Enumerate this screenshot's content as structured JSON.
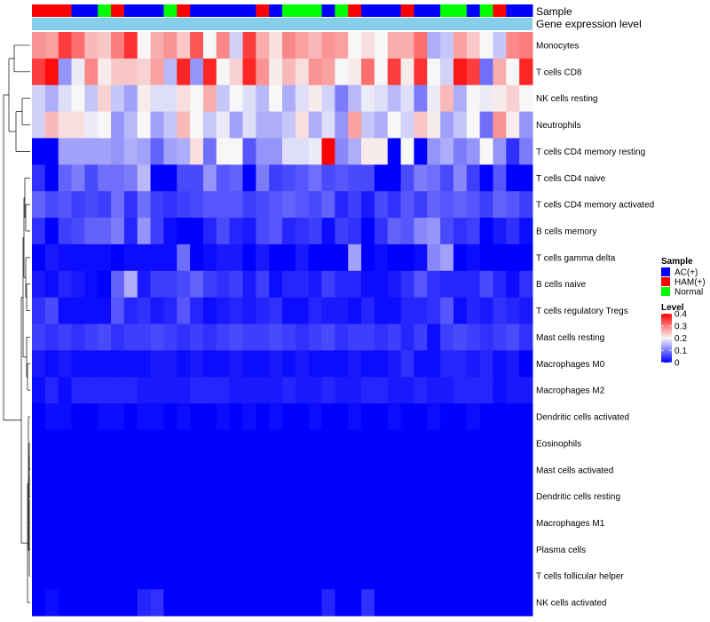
{
  "chart_data": {
    "type": "heatmap",
    "annotation_labels": {
      "sample": "Sample",
      "gene_expression": "Gene expression level"
    },
    "rows": [
      "Monocytes",
      "T cells CD8",
      "NK cells resting",
      "Neutrophils",
      "T cells CD4 memory resting",
      "T cells CD4 naive",
      "T cells CD4 memory activated",
      "B cells memory",
      "T cells gamma delta",
      "B cells naive",
      "T cells regulatory  Tregs",
      "Mast cells resting",
      "Macrophages M0",
      "Macrophages M2",
      "Dendritic cells activated",
      "Eosinophils",
      "Mast cells activated",
      "Dendritic cells resting",
      "Macrophages M1",
      "Plasma cells",
      "T cells follicular helper",
      "NK cells activated"
    ],
    "sample_groups": [
      "HAM(+)",
      "HAM(+)",
      "HAM(+)",
      "AC(+)",
      "AC(+)",
      "Normal",
      "HAM(+)",
      "AC(+)",
      "AC(+)",
      "AC(+)",
      "Normal",
      "HAM(+)",
      "AC(+)",
      "AC(+)",
      "AC(+)",
      "AC(+)",
      "AC(+)",
      "HAM(+)",
      "AC(+)",
      "Normal",
      "Normal",
      "Normal",
      "AC(+)",
      "Normal",
      "HAM(+)",
      "AC(+)",
      "AC(+)",
      "AC(+)",
      "HAM(+)",
      "AC(+)",
      "AC(+)",
      "Normal",
      "Normal",
      "AC(+)",
      "Normal",
      "HAM(+)",
      "AC(+)",
      "AC(+)"
    ],
    "values": [
      [
        0.28,
        0.27,
        0.35,
        0.31,
        0.25,
        0.24,
        0.3,
        0.36,
        0.2,
        0.26,
        0.28,
        0.24,
        0.33,
        0.2,
        0.29,
        0.17,
        0.35,
        0.26,
        0.22,
        0.29,
        0.27,
        0.25,
        0.28,
        0.27,
        0.2,
        0.22,
        0.2,
        0.26,
        0.26,
        0.31,
        0.14,
        0.16,
        0.27,
        0.24,
        0.2,
        0.16,
        0.29,
        0.3
      ],
      [
        0.35,
        0.39,
        0.12,
        0.19,
        0.29,
        0.21,
        0.24,
        0.24,
        0.23,
        0.27,
        0.15,
        0.37,
        0.12,
        0.37,
        0.2,
        0.23,
        0.37,
        0.28,
        0.21,
        0.25,
        0.22,
        0.28,
        0.27,
        0.2,
        0.21,
        0.31,
        0.2,
        0.35,
        0.21,
        0.36,
        0.2,
        0.17,
        0.38,
        0.35,
        0.09,
        0.26,
        0.2,
        0.37
      ],
      [
        0.17,
        0.14,
        0.18,
        0.2,
        0.16,
        0.23,
        0.16,
        0.13,
        0.21,
        0.18,
        0.18,
        0.22,
        0.2,
        0.26,
        0.16,
        0.2,
        0.18,
        0.15,
        0.2,
        0.14,
        0.18,
        0.21,
        0.17,
        0.1,
        0.15,
        0.19,
        0.18,
        0.15,
        0.18,
        0.1,
        0.19,
        0.25,
        0.14,
        0.2,
        0.19,
        0.21,
        0.23,
        0.2
      ],
      [
        0.17,
        0.25,
        0.22,
        0.22,
        0.19,
        0.2,
        0.12,
        0.15,
        0.2,
        0.13,
        0.16,
        0.25,
        0.2,
        0.16,
        0.19,
        0.13,
        0.18,
        0.14,
        0.14,
        0.16,
        0.22,
        0.14,
        0.18,
        0.12,
        0.27,
        0.16,
        0.14,
        0.2,
        0.17,
        0.24,
        0.21,
        0.13,
        0.16,
        0.2,
        0.09,
        0.28,
        0.21,
        0.12
      ],
      [
        0.0,
        0.0,
        0.13,
        0.13,
        0.13,
        0.13,
        0.12,
        0.14,
        0.13,
        0.08,
        0.13,
        0.14,
        0.22,
        0.09,
        0.2,
        0.2,
        0.07,
        0.12,
        0.12,
        0.18,
        0.18,
        0.19,
        0.4,
        0.11,
        0.14,
        0.21,
        0.21,
        0.0,
        0.2,
        0.0,
        0.12,
        0.14,
        0.1,
        0.12,
        0.2,
        0.12,
        0.04,
        0.1
      ],
      [
        0.04,
        0.0,
        0.08,
        0.1,
        0.06,
        0.09,
        0.09,
        0.1,
        0.15,
        0.0,
        0.0,
        0.06,
        0.06,
        0.12,
        0.07,
        0.08,
        0.0,
        0.1,
        0.05,
        0.06,
        0.07,
        0.09,
        0.06,
        0.07,
        0.06,
        0.06,
        0.0,
        0.0,
        0.06,
        0.1,
        0.09,
        0.06,
        0.11,
        0.05,
        0.0,
        0.07,
        0.0,
        0.0
      ],
      [
        0.08,
        0.06,
        0.07,
        0.05,
        0.06,
        0.05,
        0.09,
        0.04,
        0.09,
        0.05,
        0.04,
        0.05,
        0.06,
        0.07,
        0.07,
        0.07,
        0.05,
        0.06,
        0.07,
        0.08,
        0.07,
        0.06,
        0.08,
        0.03,
        0.05,
        0.02,
        0.06,
        0.04,
        0.07,
        0.05,
        0.08,
        0.07,
        0.08,
        0.07,
        0.05,
        0.08,
        0.07,
        0.05
      ],
      [
        0.04,
        0.0,
        0.05,
        0.06,
        0.08,
        0.08,
        0.1,
        0.03,
        0.12,
        0.05,
        0.01,
        0.0,
        0.0,
        0.03,
        0.06,
        0.03,
        0.02,
        0.06,
        0.07,
        0.03,
        0.04,
        0.05,
        0.01,
        0.05,
        0.04,
        0.0,
        0.04,
        0.08,
        0.07,
        0.11,
        0.12,
        0.06,
        0.04,
        0.05,
        0.0,
        0.02,
        0.04,
        0.01
      ],
      [
        0.0,
        0.02,
        0.01,
        0.01,
        0.01,
        0.01,
        0.0,
        0.01,
        0.01,
        0.01,
        0.01,
        0.09,
        0.0,
        0.01,
        0.02,
        0.02,
        0.0,
        0.02,
        0.0,
        0.0,
        0.02,
        0.0,
        0.0,
        0.0,
        0.13,
        0.0,
        0.01,
        0.0,
        0.0,
        0.01,
        0.11,
        0.13,
        0.0,
        0.01,
        0.0,
        0.0,
        0.0,
        0.0
      ],
      [
        0.02,
        0.01,
        0.03,
        0.02,
        0.01,
        0.0,
        0.08,
        0.14,
        0.02,
        0.05,
        0.05,
        0.06,
        0.08,
        0.05,
        0.04,
        0.05,
        0.02,
        0.05,
        0.01,
        0.03,
        0.03,
        0.02,
        0.05,
        0.03,
        0.03,
        0.01,
        0.01,
        0.02,
        0.04,
        0.07,
        0.04,
        0.03,
        0.03,
        0.03,
        0.06,
        0.03,
        0.01,
        0.04
      ],
      [
        0.04,
        0.06,
        0.01,
        0.01,
        0.01,
        0.01,
        0.07,
        0.03,
        0.04,
        0.02,
        0.03,
        0.07,
        0.03,
        0.01,
        0.02,
        0.03,
        0.02,
        0.03,
        0.04,
        0.01,
        0.01,
        0.03,
        0.02,
        0.02,
        0.01,
        0.03,
        0.01,
        0.01,
        0.03,
        0.03,
        0.04,
        0.07,
        0.01,
        0.03,
        0.02,
        0.04,
        0.03,
        0.02
      ],
      [
        0.05,
        0.04,
        0.05,
        0.04,
        0.05,
        0.06,
        0.04,
        0.05,
        0.05,
        0.06,
        0.05,
        0.04,
        0.05,
        0.04,
        0.05,
        0.06,
        0.05,
        0.05,
        0.06,
        0.05,
        0.04,
        0.05,
        0.06,
        0.04,
        0.05,
        0.05,
        0.04,
        0.05,
        0.03,
        0.05,
        0.01,
        0.05,
        0.06,
        0.05,
        0.04,
        0.05,
        0.06,
        0.04
      ],
      [
        0.02,
        0.01,
        0.02,
        0.01,
        0.01,
        0.01,
        0.01,
        0.01,
        0.01,
        0.02,
        0.02,
        0.01,
        0.02,
        0.01,
        0.01,
        0.02,
        0.01,
        0.01,
        0.02,
        0.01,
        0.02,
        0.01,
        0.01,
        0.01,
        0.02,
        0.01,
        0.01,
        0.02,
        0.04,
        0.01,
        0.01,
        0.03,
        0.03,
        0.02,
        0.03,
        0.01,
        0.02,
        0.0
      ],
      [
        0.01,
        0.03,
        0.01,
        0.03,
        0.03,
        0.03,
        0.03,
        0.03,
        0.02,
        0.02,
        0.02,
        0.02,
        0.03,
        0.03,
        0.03,
        0.02,
        0.02,
        0.02,
        0.02,
        0.03,
        0.02,
        0.02,
        0.03,
        0.02,
        0.02,
        0.03,
        0.03,
        0.02,
        0.02,
        0.03,
        0.02,
        0.02,
        0.03,
        0.03,
        0.03,
        0.01,
        0.02,
        0.02
      ],
      [
        0.0,
        0.01,
        0.01,
        0.0,
        0.0,
        0.01,
        0.01,
        0.0,
        0.01,
        0.01,
        0.0,
        0.01,
        0.0,
        0.0,
        0.01,
        0.0,
        0.01,
        0.0,
        0.01,
        0.0,
        0.0,
        0.01,
        0.0,
        0.0,
        0.01,
        0.0,
        0.0,
        0.01,
        0.0,
        0.0,
        0.01,
        0.0,
        0.0,
        0.01,
        0.0,
        0.0,
        0.0,
        0.0
      ],
      [
        0.0,
        0.0,
        0.0,
        0.0,
        0.0,
        0.0,
        0.0,
        0.0,
        0.0,
        0.0,
        0.0,
        0.0,
        0.0,
        0.0,
        0.0,
        0.0,
        0.0,
        0.0,
        0.0,
        0.0,
        0.0,
        0.0,
        0.0,
        0.0,
        0.0,
        0.0,
        0.0,
        0.0,
        0.0,
        0.0,
        0.0,
        0.0,
        0.0,
        0.0,
        0.0,
        0.0,
        0.0,
        0.0
      ],
      [
        0.0,
        0.0,
        0.0,
        0.0,
        0.0,
        0.0,
        0.0,
        0.0,
        0.0,
        0.0,
        0.0,
        0.0,
        0.0,
        0.0,
        0.0,
        0.0,
        0.0,
        0.0,
        0.0,
        0.0,
        0.0,
        0.0,
        0.0,
        0.0,
        0.0,
        0.0,
        0.0,
        0.0,
        0.0,
        0.0,
        0.0,
        0.0,
        0.0,
        0.0,
        0.0,
        0.0,
        0.0,
        0.0
      ],
      [
        0.0,
        0.0,
        0.0,
        0.0,
        0.0,
        0.0,
        0.0,
        0.0,
        0.0,
        0.0,
        0.0,
        0.0,
        0.0,
        0.0,
        0.0,
        0.0,
        0.0,
        0.0,
        0.0,
        0.0,
        0.0,
        0.0,
        0.0,
        0.0,
        0.0,
        0.0,
        0.0,
        0.0,
        0.0,
        0.0,
        0.0,
        0.0,
        0.0,
        0.0,
        0.0,
        0.0,
        0.0,
        0.0
      ],
      [
        0.0,
        0.0,
        0.0,
        0.0,
        0.0,
        0.0,
        0.0,
        0.0,
        0.0,
        0.0,
        0.0,
        0.0,
        0.0,
        0.0,
        0.0,
        0.0,
        0.0,
        0.0,
        0.0,
        0.0,
        0.0,
        0.0,
        0.0,
        0.0,
        0.0,
        0.0,
        0.0,
        0.0,
        0.0,
        0.0,
        0.0,
        0.0,
        0.0,
        0.0,
        0.0,
        0.0,
        0.0,
        0.0
      ],
      [
        0.0,
        0.0,
        0.0,
        0.0,
        0.0,
        0.0,
        0.0,
        0.0,
        0.0,
        0.0,
        0.0,
        0.0,
        0.0,
        0.0,
        0.0,
        0.0,
        0.0,
        0.0,
        0.0,
        0.0,
        0.0,
        0.0,
        0.0,
        0.0,
        0.0,
        0.0,
        0.0,
        0.0,
        0.0,
        0.0,
        0.0,
        0.0,
        0.0,
        0.0,
        0.0,
        0.0,
        0.0,
        0.0
      ],
      [
        0.0,
        0.0,
        0.0,
        0.0,
        0.0,
        0.0,
        0.0,
        0.0,
        0.0,
        0.0,
        0.0,
        0.0,
        0.0,
        0.0,
        0.0,
        0.0,
        0.0,
        0.0,
        0.0,
        0.0,
        0.0,
        0.0,
        0.0,
        0.0,
        0.0,
        0.0,
        0.0,
        0.0,
        0.0,
        0.0,
        0.0,
        0.0,
        0.0,
        0.0,
        0.0,
        0.0,
        0.0,
        0.0
      ],
      [
        0.0,
        0.01,
        0.0,
        0.0,
        0.0,
        0.0,
        0.0,
        0.0,
        0.03,
        0.04,
        0.0,
        0.0,
        0.0,
        0.0,
        0.0,
        0.0,
        0.0,
        0.0,
        0.0,
        0.0,
        0.0,
        0.0,
        0.03,
        0.0,
        0.0,
        0.04,
        0.0,
        0.0,
        0.0,
        0.0,
        0.0,
        0.0,
        0.0,
        0.0,
        0.0,
        0.0,
        0.0,
        0.0
      ]
    ],
    "color_scale": {
      "min": 0,
      "mid": 0.2,
      "max": 0.4,
      "low_color": "#0000ff",
      "mid_color": "#f7f7f7",
      "high_color": "#ff0000"
    },
    "gene_expression_color": "#87ceeb",
    "legend": {
      "sample_title": "Sample",
      "groups": [
        {
          "label": "AC(+)",
          "color": "#0000ff"
        },
        {
          "label": "HAM(+)",
          "color": "#ff0000"
        },
        {
          "label": "Normal",
          "color": "#00ff00"
        }
      ],
      "level_title": "Level",
      "level_ticks": [
        {
          "label": "0.4",
          "value": 0.4
        },
        {
          "label": "0.3",
          "value": 0.3
        },
        {
          "label": "0.2",
          "value": 0.2
        },
        {
          "label": "0.1",
          "value": 0.1
        },
        {
          "label": "0",
          "value": 0
        }
      ],
      "position": "right"
    },
    "row_dendrogram": true
  }
}
